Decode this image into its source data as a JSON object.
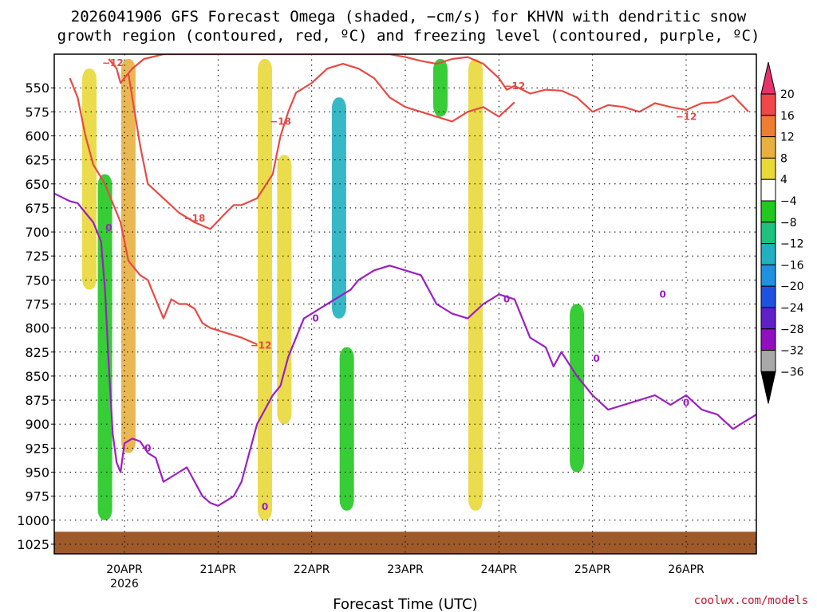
{
  "title_lines": [
    "2026041906 GFS Forecast Omega (shaded, −cm/s) for KHVN with dendritic snow",
    "growth region (contoured, red, ºC) and freezing level (contoured, purple, ºC)"
  ],
  "credit": "coolwx.com/models",
  "chart_data": {
    "type": "heatmap",
    "title": "2026041906 GFS Forecast Omega (shaded, −cm/s) for KHVN with dendritic snow growth region (contoured, red, ºC) and freezing level (contoured, purple, ºC)",
    "xlabel": "Forecast Time (UTC)",
    "ylabel": "",
    "x_unit": "hours since 20APR 00Z",
    "xlim": [
      -18,
      162
    ],
    "ylim": [
      1035,
      515
    ],
    "y_ticks": [
      550,
      575,
      600,
      625,
      650,
      675,
      700,
      725,
      750,
      775,
      800,
      825,
      850,
      875,
      900,
      925,
      950,
      975,
      1000,
      1025
    ],
    "x_ticks": [
      {
        "hour": 0,
        "label": "20APR",
        "sub": "2026"
      },
      {
        "hour": 24,
        "label": "21APR"
      },
      {
        "hour": 48,
        "label": "22APR"
      },
      {
        "hour": 72,
        "label": "23APR"
      },
      {
        "hour": 96,
        "label": "24APR"
      },
      {
        "hour": 120,
        "label": "25APR"
      },
      {
        "hour": 144,
        "label": "26APR"
      }
    ],
    "grid": true,
    "colorbar": {
      "ticks": [
        "20",
        "16",
        "12",
        "8",
        "4",
        "−4",
        "−8",
        "−12",
        "−16",
        "−20",
        "−24",
        "−28",
        "−32",
        "−36"
      ],
      "colors": [
        "#e8306a",
        "#f04848",
        "#ec7e34",
        "#e8b040",
        "#e8d838",
        "#ffffff",
        "#20c820",
        "#20c080",
        "#20b0c0",
        "#2090e0",
        "#2050e0",
        "#6020c8",
        "#9010c0",
        "#a8a8a8",
        "#000000"
      ]
    },
    "ground": {
      "surface_pressure_hpa": 1012,
      "color": "#9e5a2a"
    },
    "shading_regions": [
      {
        "name": "yellow-early",
        "class": "4 to 8",
        "hour": -9,
        "p_top": 530,
        "p_bot": 760
      },
      {
        "name": "orange-early",
        "class": "8 to 12",
        "hour": 1,
        "p_top": 520,
        "p_bot": 930
      },
      {
        "name": "yellow-mid",
        "class": "4 to 8",
        "hour": 36,
        "p_top": 520,
        "p_bot": 1000
      },
      {
        "name": "yellow-22apr",
        "class": "4 to 8",
        "hour": 41,
        "p_top": 620,
        "p_bot": 900
      },
      {
        "name": "green-20apr",
        "class": "-4 to -8",
        "hour": -5,
        "p_top": 640,
        "p_bot": 1000
      },
      {
        "name": "cyan-22apr",
        "class": "-12 to -16",
        "hour": 55,
        "p_top": 560,
        "p_bot": 790
      },
      {
        "name": "green-22apr-low",
        "class": "-4 to -8",
        "hour": 57,
        "p_top": 820,
        "p_bot": 990
      },
      {
        "name": "green-23apr",
        "class": "-4 to -8",
        "hour": 81,
        "p_top": 520,
        "p_bot": 580
      },
      {
        "name": "yellow-23apr",
        "class": "4 to 8",
        "hour": 90,
        "p_top": 520,
        "p_bot": 990
      },
      {
        "name": "green-25apr",
        "class": "-4 to -8",
        "hour": 116,
        "p_top": 775,
        "p_bot": 950
      }
    ],
    "series": [
      {
        "name": "dendritic growth −12 ºC (upper)",
        "color": "#e84a45",
        "hours": [
          -4,
          -2,
          -1,
          2,
          5,
          10,
          14,
          20,
          24,
          28,
          32,
          36,
          40,
          44,
          48,
          52,
          56,
          60,
          64,
          68,
          72,
          76,
          80,
          84,
          88,
          92,
          96,
          98,
          100,
          104,
          108,
          112,
          116,
          120,
          124,
          128,
          132,
          136,
          140,
          144,
          148,
          152,
          156,
          160
        ],
        "pressure": [
          520,
          530,
          545,
          530,
          520,
          515,
          515,
          515,
          515,
          515,
          515,
          515,
          515,
          515,
          515,
          515,
          515,
          515,
          515,
          515,
          518,
          522,
          525,
          520,
          518,
          525,
          540,
          552,
          548,
          556,
          552,
          553,
          560,
          575,
          568,
          570,
          575,
          566,
          570,
          573,
          566,
          565,
          558,
          575
        ]
      },
      {
        "name": "dendritic growth −18 ºC",
        "color": "#e84a45",
        "hours": [
          1,
          2,
          4,
          6,
          10,
          14,
          18,
          22,
          26,
          28,
          30,
          34,
          38,
          40,
          42,
          44,
          48,
          52,
          56,
          60,
          64,
          68,
          72,
          76,
          80,
          84,
          88,
          92,
          96,
          100
        ],
        "pressure": [
          535,
          560,
          610,
          650,
          665,
          680,
          690,
          697,
          680,
          672,
          672,
          665,
          640,
          600,
          575,
          555,
          545,
          530,
          525,
          530,
          540,
          560,
          570,
          575,
          580,
          585,
          575,
          570,
          580,
          565
        ]
      },
      {
        "name": "dendritic growth −12 ºC (lower)",
        "color": "#e84a45",
        "hours": [
          -14,
          -12,
          -10,
          -8,
          -5,
          -3,
          -1,
          1,
          4,
          6,
          8,
          10,
          12,
          14,
          16,
          18,
          20,
          22,
          26,
          30,
          34
        ],
        "pressure": [
          540,
          560,
          600,
          630,
          650,
          670,
          690,
          730,
          745,
          750,
          770,
          790,
          770,
          775,
          775,
          780,
          795,
          800,
          805,
          810,
          817
        ]
      },
      {
        "name": "freezing level 0 ºC",
        "color": "#9b1fc4",
        "hours": [
          -18,
          -16,
          -14,
          -12,
          -10,
          -8,
          -6,
          -5,
          -4,
          -3,
          -2,
          -1,
          0,
          2,
          4,
          6,
          8,
          10,
          12,
          14,
          16,
          18,
          20,
          22,
          24,
          26,
          28,
          30,
          32,
          34,
          36,
          38,
          40,
          42,
          44,
          46,
          48,
          50,
          52,
          54,
          56,
          58,
          60,
          64,
          68,
          72,
          76,
          80,
          84,
          88,
          92,
          96,
          100,
          104,
          108,
          110,
          112,
          116,
          120,
          124,
          128,
          132,
          136,
          140,
          144,
          148,
          152,
          156,
          158,
          160,
          162
        ],
        "pressure": [
          660,
          664,
          668,
          670,
          680,
          690,
          710,
          760,
          840,
          910,
          940,
          950,
          920,
          915,
          918,
          930,
          935,
          960,
          955,
          950,
          945,
          960,
          975,
          982,
          985,
          980,
          975,
          960,
          930,
          900,
          885,
          870,
          860,
          830,
          810,
          790,
          785,
          780,
          775,
          770,
          765,
          760,
          750,
          740,
          735,
          740,
          745,
          775,
          785,
          790,
          775,
          765,
          770,
          810,
          820,
          840,
          825,
          850,
          870,
          885,
          880,
          875,
          870,
          880,
          870,
          885,
          890,
          905,
          900,
          895,
          890
        ]
      }
    ],
    "contour_labels": [
      {
        "text": "−12",
        "hour": -3,
        "p": 524,
        "color": "#e84a45"
      },
      {
        "text": "−18",
        "hour": 40,
        "p": 585,
        "color": "#e84a45"
      },
      {
        "text": "−18",
        "hour": 18,
        "p": 686,
        "color": "#e84a45"
      },
      {
        "text": "−12",
        "hour": 35,
        "p": 818,
        "color": "#e84a45"
      },
      {
        "text": "−12",
        "hour": 100,
        "p": 548,
        "color": "#e84a45"
      },
      {
        "text": "−12",
        "hour": 144,
        "p": 580,
        "color": "#e84a45"
      },
      {
        "text": "0",
        "hour": -4,
        "p": 696,
        "color": "#9b1fc4"
      },
      {
        "text": "0",
        "hour": 6,
        "p": 925,
        "color": "#9b1fc4"
      },
      {
        "text": "0",
        "hour": 36,
        "p": 986,
        "color": "#9b1fc4"
      },
      {
        "text": "0",
        "hour": 49,
        "p": 790,
        "color": "#9b1fc4"
      },
      {
        "text": "0",
        "hour": 98,
        "p": 770,
        "color": "#9b1fc4"
      },
      {
        "text": "0",
        "hour": 121,
        "p": 832,
        "color": "#9b1fc4"
      },
      {
        "text": "0",
        "hour": 138,
        "p": 765,
        "color": "#9b1fc4"
      },
      {
        "text": "0",
        "hour": 144,
        "p": 878,
        "color": "#9b1fc4"
      }
    ]
  }
}
